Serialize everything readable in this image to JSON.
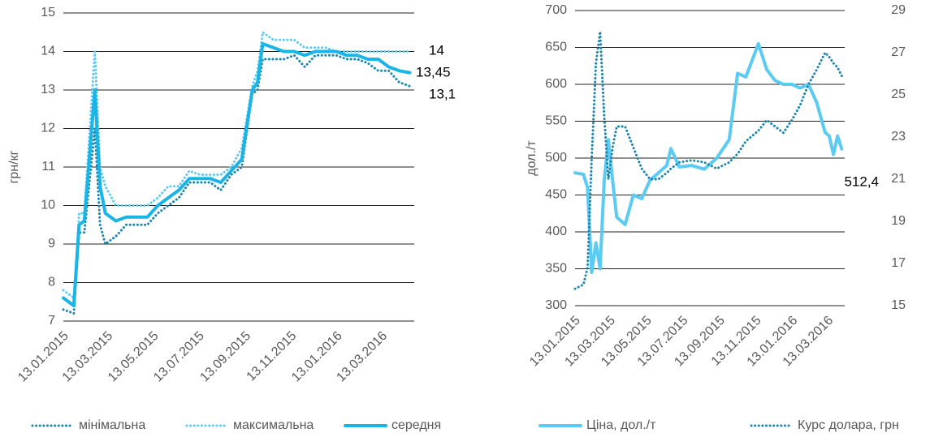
{
  "chart_data": [
    {
      "type": "line",
      "y_label": "грн/кг",
      "x": [
        "13.01.2015",
        "27.01.2015",
        "03.02.2015",
        "10.02.2015",
        "24.02.2015",
        "03.03.2015",
        "10.03.2015",
        "24.03.2015",
        "07.04.2015",
        "21.04.2015",
        "05.05.2015",
        "19.05.2015",
        "02.06.2015",
        "16.06.2015",
        "30.06.2015",
        "14.07.2015",
        "28.07.2015",
        "11.08.2015",
        "25.08.2015",
        "08.09.2015",
        "22.09.2015",
        "29.09.2015",
        "06.10.2015",
        "20.10.2015",
        "03.11.2015",
        "17.11.2015",
        "01.12.2015",
        "15.12.2015",
        "29.12.2015",
        "12.01.2016",
        "26.01.2016",
        "09.02.2016",
        "23.02.2016",
        "08.03.2016",
        "22.03.2016",
        "05.04.2016",
        "19.04.2016"
      ],
      "xlim": [
        "13.01.2015",
        "25.04.2016"
      ],
      "xticks": [
        "13.01.2015",
        "13.03.2015",
        "13.05.2015",
        "13.07.2015",
        "13.09.2015",
        "13.11.2015",
        "13.01.2016",
        "13.03.2016"
      ],
      "ylim": [
        7,
        15
      ],
      "yticks": [
        7,
        8,
        9,
        10,
        11,
        12,
        13,
        14,
        15
      ],
      "grid": true,
      "series": [
        {
          "name": "мінімальна",
          "color": "#1b86ad",
          "style": "dotted",
          "values": [
            7.3,
            7.2,
            9.3,
            9.3,
            12.0,
            9.5,
            9.0,
            9.2,
            9.5,
            9.5,
            9.5,
            9.8,
            10.0,
            10.2,
            10.6,
            10.6,
            10.6,
            10.4,
            10.8,
            11.0,
            12.9,
            13.0,
            13.8,
            13.8,
            13.8,
            13.9,
            13.6,
            13.9,
            13.9,
            13.9,
            13.8,
            13.8,
            13.7,
            13.5,
            13.5,
            13.2,
            13.1
          ]
        },
        {
          "name": "максимальна",
          "color": "#5ccbf2",
          "style": "dotted",
          "values": [
            7.8,
            7.6,
            9.8,
            9.8,
            14.0,
            11.0,
            10.5,
            10.0,
            10.0,
            10.0,
            10.0,
            10.2,
            10.5,
            10.5,
            10.9,
            10.8,
            10.8,
            10.8,
            11.0,
            11.5,
            13.1,
            13.5,
            14.5,
            14.3,
            14.3,
            14.3,
            14.1,
            14.1,
            14.1,
            14.0,
            14.0,
            14.0,
            14.0,
            14.0,
            14.0,
            14.0,
            14.0
          ]
        },
        {
          "name": "середня",
          "color": "#19b5e6",
          "style": "solid",
          "values": [
            7.6,
            7.4,
            9.5,
            9.6,
            13.0,
            10.5,
            9.8,
            9.6,
            9.7,
            9.7,
            9.7,
            10.0,
            10.2,
            10.4,
            10.7,
            10.7,
            10.7,
            10.6,
            10.9,
            11.2,
            13.0,
            13.2,
            14.2,
            14.1,
            14.0,
            14.0,
            13.9,
            14.0,
            14.0,
            14.0,
            13.9,
            13.9,
            13.8,
            13.8,
            13.6,
            13.5,
            13.45
          ]
        }
      ],
      "annotations": [
        "14",
        "13,45",
        "13,1"
      ]
    },
    {
      "type": "line",
      "y_label": "дол./т",
      "x": [
        "13.01.2015",
        "27.01.2015",
        "03.02.2015",
        "10.02.2015",
        "17.02.2015",
        "24.02.2015",
        "03.03.2015",
        "10.03.2015",
        "17.03.2015",
        "24.03.2015",
        "07.04.2015",
        "21.04.2015",
        "05.05.2015",
        "19.05.2015",
        "02.06.2015",
        "16.06.2015",
        "23.06.2015",
        "07.07.2015",
        "28.07.2015",
        "18.08.2015",
        "08.09.2015",
        "29.09.2015",
        "13.10.2015",
        "27.10.2015",
        "17.11.2015",
        "01.12.2015",
        "15.12.2015",
        "29.12.2015",
        "12.01.2016",
        "26.01.2016",
        "09.02.2016",
        "23.02.2016",
        "08.03.2016",
        "15.03.2016",
        "22.03.2016",
        "29.03.2016",
        "05.04.2016"
      ],
      "xlim": [
        "13.01.2015",
        "10.04.2016"
      ],
      "xticks": [
        "13.01.2015",
        "13.03.2015",
        "13.05.2015",
        "13.07.2015",
        "13.09.2015",
        "13.11.2015",
        "13.01.2016",
        "13.03.2016"
      ],
      "ylim": [
        300,
        700
      ],
      "yticks": [
        300,
        350,
        400,
        450,
        500,
        550,
        600,
        650,
        700
      ],
      "y2lim": [
        15,
        29
      ],
      "y2ticks": [
        15,
        17,
        19,
        21,
        23,
        25,
        27,
        29
      ],
      "grid": true,
      "series": [
        {
          "name": "Ціна, дол./т",
          "color": "#5ccbf2",
          "style": "solid",
          "values": [
            480,
            478,
            460,
            345,
            385,
            350,
            470,
            525,
            470,
            420,
            410,
            450,
            445,
            470,
            480,
            490,
            513,
            488,
            490,
            485,
            500,
            525,
            615,
            610,
            655,
            620,
            605,
            600,
            600,
            595,
            600,
            575,
            535,
            530,
            505,
            530,
            512.4
          ]
        },
        {
          "name": "Курс долара, грн",
          "color": "#1b86ad",
          "style": "dotted",
          "axis": "y2",
          "values": [
            15.8,
            16.0,
            16.8,
            22.0,
            26.5,
            28.0,
            24.0,
            21.0,
            22.5,
            23.5,
            23.5,
            22.5,
            21.5,
            21.0,
            21.0,
            21.3,
            21.5,
            21.8,
            21.9,
            21.8,
            21.5,
            21.8,
            22.2,
            22.8,
            23.3,
            23.8,
            23.5,
            23.2,
            23.8,
            24.5,
            25.5,
            26.2,
            27.0,
            26.8,
            26.5,
            26.3,
            25.9
          ]
        }
      ],
      "annotations": [
        "512,4"
      ]
    }
  ]
}
